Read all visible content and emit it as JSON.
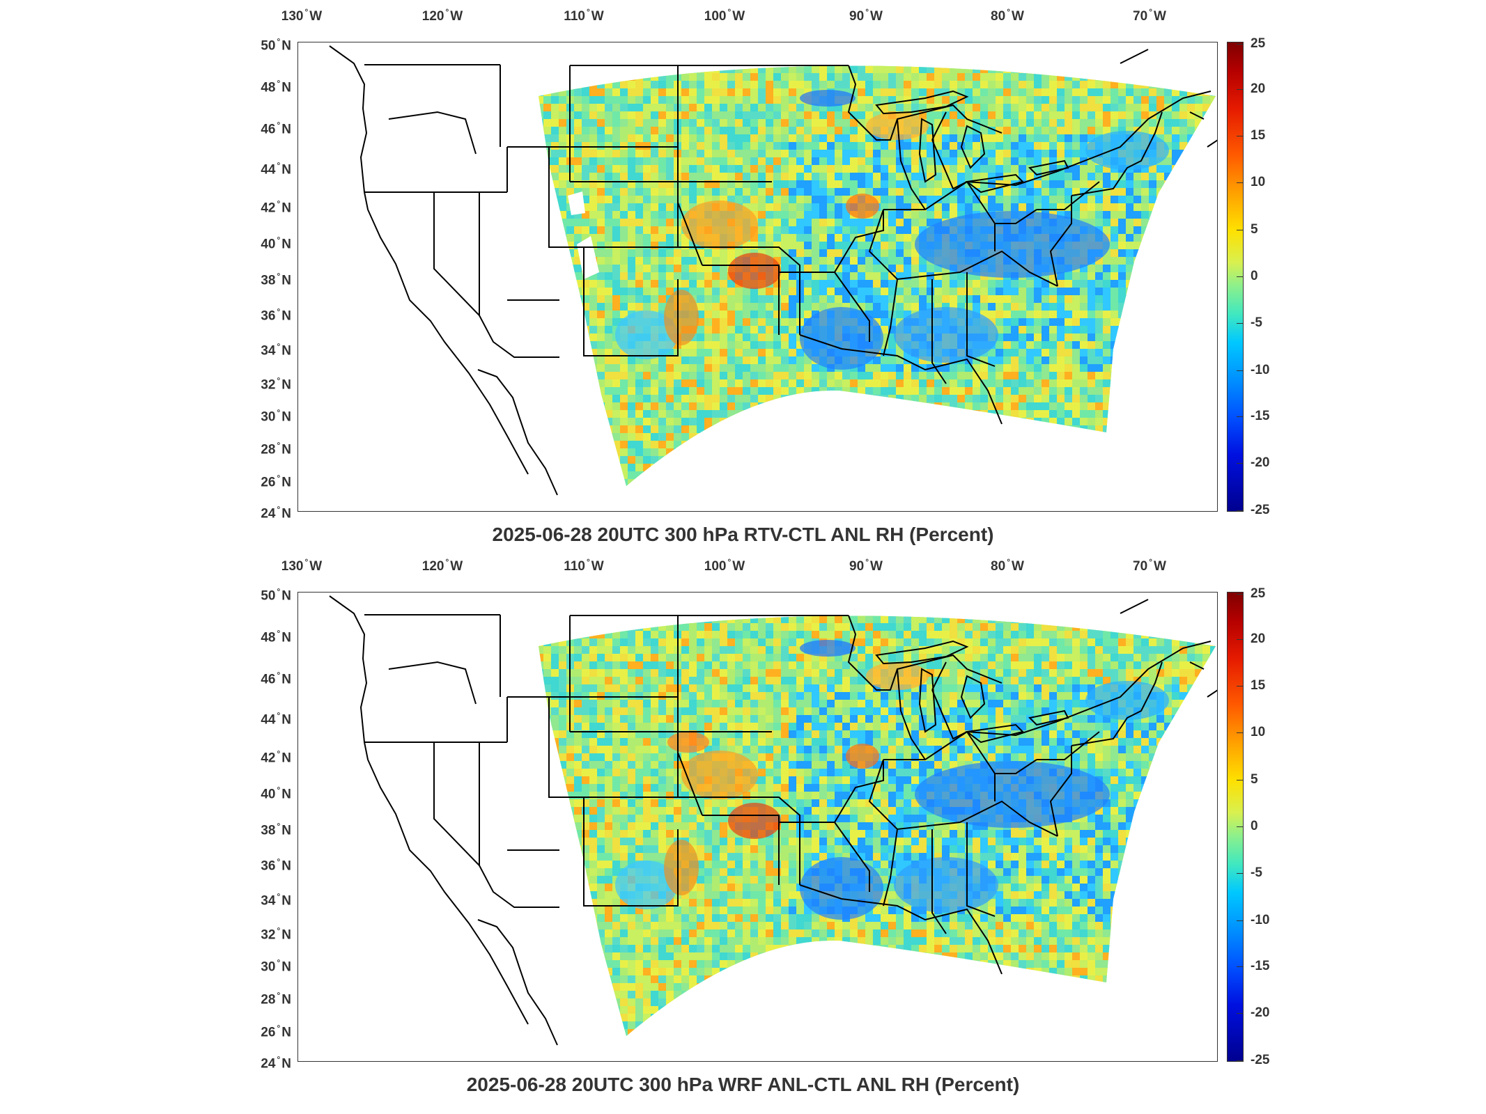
{
  "figure": {
    "lon_labels": [
      {
        "deg": "130",
        "hem": "W"
      },
      {
        "deg": "120",
        "hem": "W"
      },
      {
        "deg": "110",
        "hem": "W"
      },
      {
        "deg": "100",
        "hem": "W"
      },
      {
        "deg": "90",
        "hem": "W"
      },
      {
        "deg": "80",
        "hem": "W"
      },
      {
        "deg": "70",
        "hem": "W"
      }
    ],
    "lat_labels": [
      {
        "deg": "50",
        "hem": "N"
      },
      {
        "deg": "48",
        "hem": "N"
      },
      {
        "deg": "46",
        "hem": "N"
      },
      {
        "deg": "44",
        "hem": "N"
      },
      {
        "deg": "42",
        "hem": "N"
      },
      {
        "deg": "40",
        "hem": "N"
      },
      {
        "deg": "38",
        "hem": "N"
      },
      {
        "deg": "36",
        "hem": "N"
      },
      {
        "deg": "34",
        "hem": "N"
      },
      {
        "deg": "32",
        "hem": "N"
      },
      {
        "deg": "30",
        "hem": "N"
      },
      {
        "deg": "28",
        "hem": "N"
      },
      {
        "deg": "26",
        "hem": "N"
      },
      {
        "deg": "24",
        "hem": "N"
      }
    ],
    "colorbar_ticks": [
      "25",
      "20",
      "15",
      "10",
      "5",
      "0",
      "-5",
      "-10",
      "-15",
      "-20",
      "-25"
    ],
    "colormap": [
      "#7f0000",
      "#e51a00",
      "#ffa000",
      "#ffe000",
      "#8cf08c",
      "#00c8ff",
      "#0050ff",
      "#00008f"
    ]
  },
  "panels": [
    {
      "title": "2025-06-28 20UTC 300 hPa RTV-CTL ANL RH (Percent)"
    },
    {
      "title": "2025-06-28 20UTC 300 hPa WRF ANL-CTL ANL RH (Percent)"
    }
  ]
}
